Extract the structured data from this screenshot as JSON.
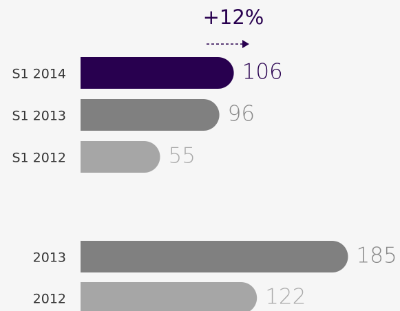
{
  "chart_data": {
    "type": "bar",
    "annotation": "+12%",
    "categories": [
      "S1 2014",
      "S1 2013",
      "S1 2012",
      "2013",
      "2012"
    ],
    "values": [
      106,
      96,
      55,
      185,
      122
    ],
    "colors": [
      "#28004f",
      "#808080",
      "#a6a6a6",
      "#808080",
      "#a6a6a6"
    ]
  }
}
